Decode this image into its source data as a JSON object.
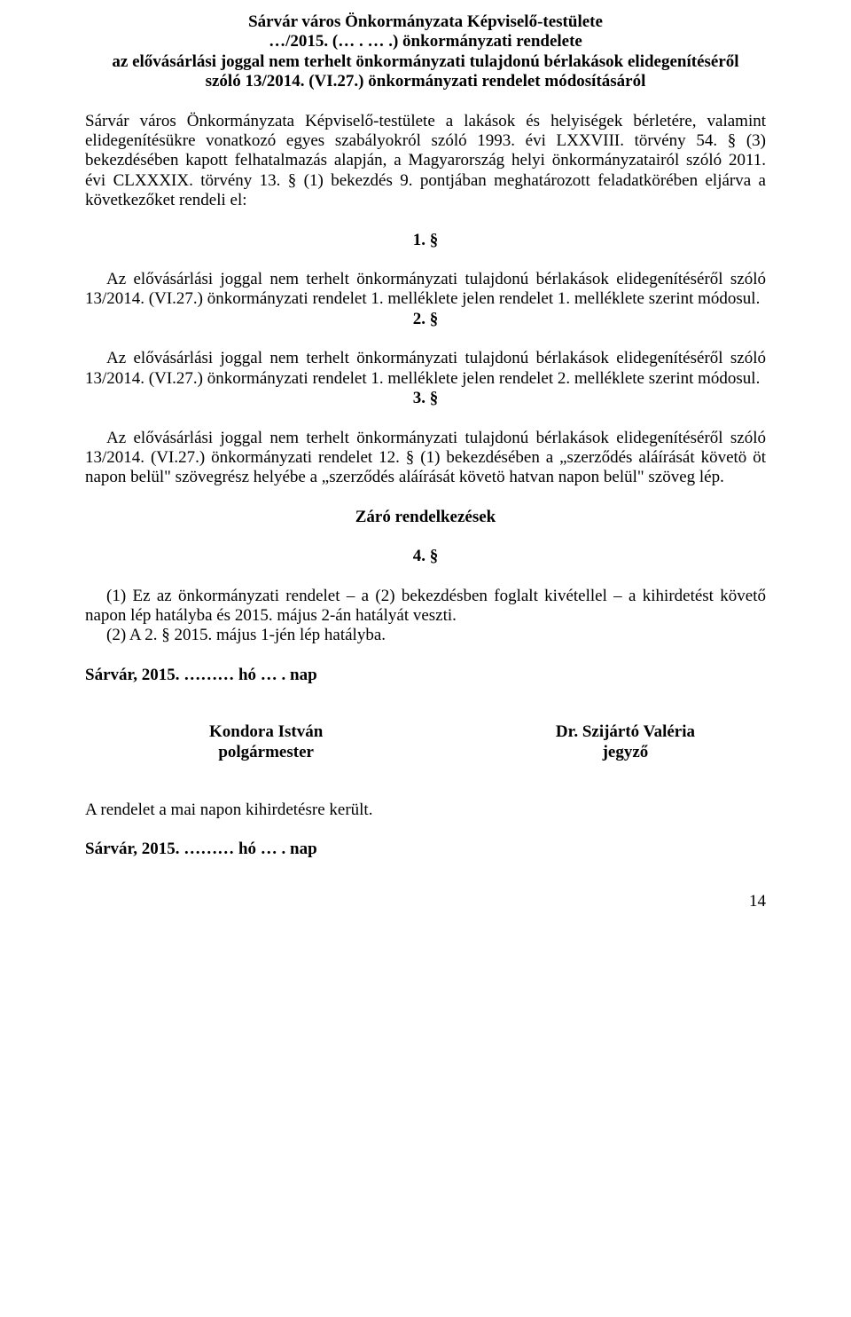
{
  "header": {
    "l1": "Sárvár város Önkormányzata Képviselő-testülete",
    "l2": "…/2015. (… . … .) önkormányzati rendelete",
    "l3": "az elővásárlási joggal nem terhelt önkormányzati tulajdonú bérlakások elidegenítéséről",
    "l4": "szóló 13/2014. (VI.27.) önkormányzati rendelet módosításáról"
  },
  "intro": "Sárvár város Önkormányzata Képviselő-testülete a lakások és helyiségek bérletére, valamint elidegenítésükre vonatkozó egyes szabályokról szóló 1993. évi LXXVIII. törvény 54. § (3) bekezdésében kapott felhatalmazás alapján, a Magyarország helyi önkormányzatairól szóló 2011. évi CLXXXIX. törvény 13. § (1) bekezdés 9. pontjában meghatározott feladatkörében eljárva a következőket rendeli el:",
  "s1": {
    "num": "1. §",
    "text": "Az elővásárlási joggal nem terhelt önkormányzati tulajdonú bérlakások elidegenítéséről szóló 13/2014. (VI.27.) önkormányzati rendelet 1. melléklete jelen rendelet 1. melléklete szerint módosul."
  },
  "s2": {
    "num": "2. §",
    "text": "Az elővásárlási joggal nem terhelt önkormányzati tulajdonú bérlakások elidegenítéséről szóló 13/2014. (VI.27.) önkormányzati rendelet 1. melléklete jelen rendelet 2. melléklete szerint módosul."
  },
  "s3": {
    "num": "3. §",
    "text": "Az elővásárlási joggal nem terhelt önkormányzati tulajdonú bérlakások elidegenítéséről szóló 13/2014. (VI.27.) önkormányzati rendelet 12. § (1) bekezdésében a „szerződés aláírását követö öt napon belül\" szövegrész helyébe a „szerződés aláírását követö hatvan napon belül\" szöveg lép."
  },
  "closing": {
    "title": "Záró rendelkezések"
  },
  "s4": {
    "num": "4. §",
    "p1": "(1) Ez az önkormányzati rendelet – a (2) bekezdésben foglalt kivétellel – a kihirdetést követő napon lép hatályba és 2015. május 2-án hatályát veszti.",
    "p2": "(2) A 2. § 2015. május 1-jén lép hatályba."
  },
  "date1": "Sárvár, 2015. ……… hó … . nap",
  "sig": {
    "left_name": "Kondora István",
    "left_title": "polgármester",
    "right_name": "Dr. Szijártó Valéria",
    "right_title": "jegyző"
  },
  "publish": "A rendelet a mai napon kihirdetésre került.",
  "date2": "Sárvár, 2015. ……… hó … . nap",
  "pagenum": "14"
}
